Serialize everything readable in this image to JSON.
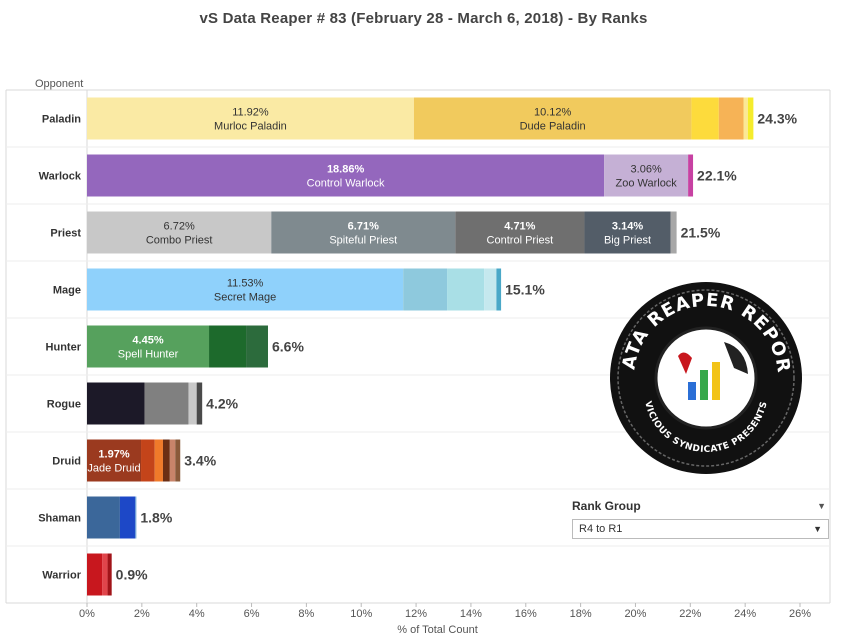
{
  "title": "vS Data Reaper #  83 (February 28 - March 6, 2018) - By Ranks",
  "chart_data": {
    "type": "bar",
    "orientation": "horizontal",
    "stacked": true,
    "row_axis_label": "Opponent",
    "xlabel": "% of Total Count",
    "xlim": [
      0,
      26
    ],
    "xticks": [
      0,
      2,
      4,
      6,
      8,
      10,
      12,
      14,
      16,
      18,
      20,
      22,
      24,
      26
    ],
    "tick_suffix": "%",
    "rows": [
      {
        "name": "Paladin",
        "total": 24.3,
        "total_label": "24.3%",
        "segments": [
          {
            "value": 11.92,
            "label": "11.92%",
            "archetype": "Murloc Paladin",
            "color": "#faeaa4"
          },
          {
            "value": 10.12,
            "label": "10.12%",
            "archetype": "Dude Paladin",
            "color": "#f1ca5d"
          },
          {
            "value": 1.0,
            "color": "#fddb3c"
          },
          {
            "value": 0.9,
            "color": "#f6b356"
          },
          {
            "value": 0.16,
            "color": "#fbe896"
          },
          {
            "value": 0.2,
            "color": "#f5ec2c"
          }
        ]
      },
      {
        "name": "Warlock",
        "total": 22.1,
        "total_label": "22.1%",
        "segments": [
          {
            "value": 18.86,
            "label": "18.86%",
            "archetype": "Control Warlock",
            "color": "#9467bd"
          },
          {
            "value": 3.06,
            "label": "3.06%",
            "archetype": "Zoo Warlock",
            "color": "#c5b0d5"
          },
          {
            "value": 0.18,
            "color": "#c741a2"
          }
        ]
      },
      {
        "name": "Priest",
        "total": 21.5,
        "total_label": "21.5%",
        "segments": [
          {
            "value": 6.72,
            "label": "6.72%",
            "archetype": "Combo Priest",
            "color": "#c8c8c8"
          },
          {
            "value": 6.71,
            "label": "6.71%",
            "archetype": "Spiteful Priest",
            "color": "#7f8a8f"
          },
          {
            "value": 4.71,
            "label": "4.71%",
            "archetype": "Control Priest",
            "color": "#6f6f6f"
          },
          {
            "value": 3.14,
            "label": "3.14%",
            "archetype": "Big Priest",
            "color": "#535d68"
          },
          {
            "value": 0.22,
            "color": "#a7a7a7"
          }
        ]
      },
      {
        "name": "Mage",
        "total": 15.1,
        "total_label": "15.1%",
        "segments": [
          {
            "value": 11.53,
            "label": "11.53%",
            "archetype": "Secret Mage",
            "color": "#8fd1fb"
          },
          {
            "value": 1.6,
            "color": "#8ec9dd"
          },
          {
            "value": 1.35,
            "color": "#a9dfe6"
          },
          {
            "value": 0.45,
            "color": "#c5e8ee"
          },
          {
            "value": 0.17,
            "color": "#4aa8c8"
          }
        ]
      },
      {
        "name": "Hunter",
        "total": 6.6,
        "total_label": "6.6%",
        "segments": [
          {
            "value": 4.45,
            "label": "4.45%",
            "archetype": "Spell Hunter",
            "color": "#56a15d"
          },
          {
            "value": 1.35,
            "color": "#1d6a2c"
          },
          {
            "value": 0.8,
            "color": "#2c6b3c"
          }
        ]
      },
      {
        "name": "Rogue",
        "total": 4.2,
        "total_label": "4.2%",
        "segments": [
          {
            "value": 2.1,
            "color": "#1c1928"
          },
          {
            "value": 1.6,
            "color": "#808080"
          },
          {
            "value": 0.3,
            "color": "#c9c9c9"
          },
          {
            "value": 0.2,
            "color": "#4a4a4a"
          }
        ]
      },
      {
        "name": "Druid",
        "total": 3.4,
        "total_label": "3.4%",
        "segments": [
          {
            "value": 1.97,
            "label": "1.97%",
            "archetype": "Jade Druid",
            "color": "#9b3a1f"
          },
          {
            "value": 0.5,
            "color": "#c4441a"
          },
          {
            "value": 0.3,
            "color": "#f07a2a"
          },
          {
            "value": 0.25,
            "color": "#6b2e14"
          },
          {
            "value": 0.2,
            "color": "#c8846a"
          },
          {
            "value": 0.18,
            "color": "#8a5a3a"
          }
        ]
      },
      {
        "name": "Shaman",
        "total": 1.8,
        "total_label": "1.8%",
        "segments": [
          {
            "value": 1.2,
            "color": "#3b679a"
          },
          {
            "value": 0.55,
            "color": "#1d48c7"
          },
          {
            "value": 0.05,
            "color": "#6fa0d8"
          }
        ]
      },
      {
        "name": "Warrior",
        "total": 0.9,
        "total_label": "0.9%",
        "segments": [
          {
            "value": 0.55,
            "color": "#c8171e"
          },
          {
            "value": 0.2,
            "color": "#e0454b"
          },
          {
            "value": 0.15,
            "color": "#a11419"
          }
        ]
      }
    ]
  },
  "logo": {
    "brand_text": "DATA REAPER REPORT",
    "sub_text": "VICIOUS SYNDICATE PRESENTS",
    "icon": "reaper-skull-bar-chart-icon"
  },
  "rank_group": {
    "title": "Rank Group",
    "selected": "R4 to R1",
    "menu_icon": "dropdown-caret-icon",
    "arrow_icon": "select-arrow-icon"
  }
}
